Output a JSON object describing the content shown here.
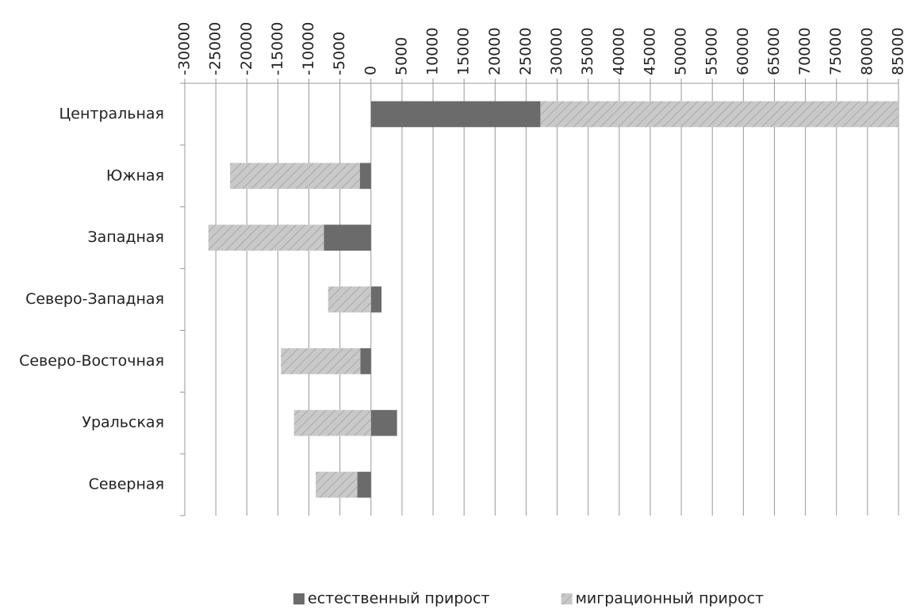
{
  "chart_data": {
    "type": "stacked-bar-horizontal",
    "categories": [
      "Центральная",
      "Южная",
      "Западная",
      "Северо-Западная",
      "Северо-Восточная",
      "Уральская",
      "Северная"
    ],
    "series": [
      {
        "name": "естественный прирост",
        "color": "#6b6b6b",
        "values": [
          27300,
          -1800,
          -7600,
          1700,
          -1700,
          4200,
          -2200
        ]
      },
      {
        "name": "миграционный прирост",
        "color": "#c9c9c9",
        "hatch": true,
        "values": [
          57600,
          -20900,
          -18600,
          -6900,
          -12800,
          -12400,
          -6700
        ]
      }
    ],
    "xlim": [
      -30000,
      85000
    ],
    "xticks": [
      -30000,
      -25000,
      -20000,
      -15000,
      -10000,
      -5000,
      0,
      5000,
      10000,
      15000,
      20000,
      25000,
      30000,
      35000,
      40000,
      45000,
      50000,
      55000,
      60000,
      65000,
      70000,
      75000,
      80000,
      85000
    ],
    "grid": true,
    "legend": "bottom"
  }
}
